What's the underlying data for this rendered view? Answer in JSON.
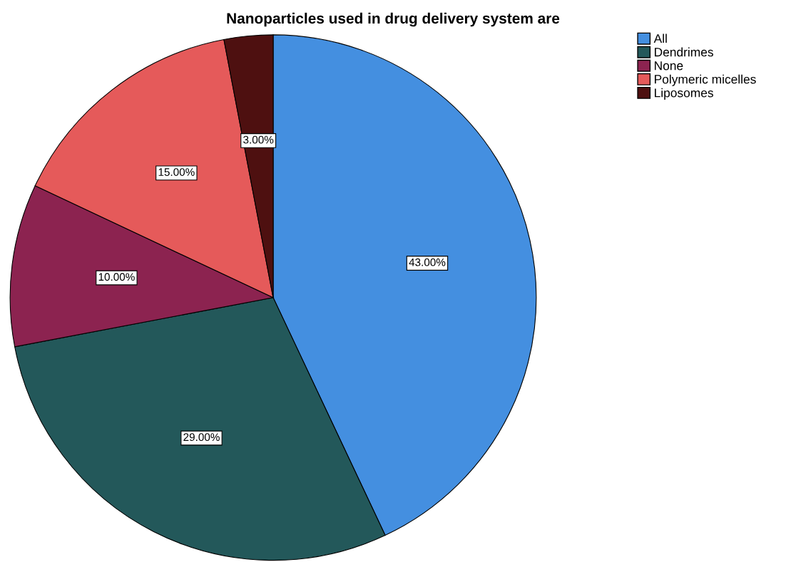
{
  "chart_data": {
    "type": "pie",
    "title": "Nanoparticles used in drug delivery system are",
    "categories": [
      "All",
      "Dendrimes",
      "None",
      "Polymeric micelles",
      "Liposomes"
    ],
    "values": [
      43,
      29,
      10,
      15,
      3
    ],
    "value_labels": [
      "43.00%",
      "29.00%",
      "10.00%",
      "15.00%",
      "3.00%"
    ],
    "colors": [
      "#448fe0",
      "#23585a",
      "#8c2350",
      "#e55a5a",
      "#4e1010"
    ],
    "legend": "top right"
  }
}
